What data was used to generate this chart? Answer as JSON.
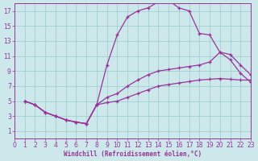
{
  "xlabel": "Windchill (Refroidissement éolien,°C)",
  "bg_color": "#cce8ea",
  "grid_color": "#99cccc",
  "line_color": "#993399",
  "axis_color": "#993399",
  "xlim": [
    0,
    23
  ],
  "ylim": [
    0,
    18
  ],
  "xticks": [
    0,
    1,
    2,
    3,
    4,
    5,
    6,
    7,
    8,
    9,
    10,
    11,
    12,
    13,
    14,
    15,
    16,
    17,
    18,
    19,
    20,
    21,
    22,
    23
  ],
  "yticks": [
    1,
    3,
    5,
    7,
    9,
    11,
    13,
    15,
    17
  ],
  "curve1_x": [
    1,
    2,
    3,
    4,
    5,
    6,
    7,
    8,
    9,
    10,
    11,
    12,
    13,
    14,
    15,
    16,
    17,
    18,
    19,
    20,
    21,
    22,
    23
  ],
  "curve1_y": [
    5,
    4.5,
    3.5,
    3.0,
    2.5,
    2.2,
    2.0,
    4.5,
    9.8,
    13.8,
    16.2,
    17.0,
    17.4,
    18.2,
    18.4,
    17.4,
    17.0,
    14.0,
    13.8,
    11.5,
    10.5,
    8.7,
    7.5
  ],
  "curve2_x": [
    1,
    2,
    3,
    4,
    5,
    6,
    7,
    8,
    9,
    10,
    11,
    12,
    13,
    14,
    15,
    16,
    17,
    18,
    19,
    20,
    21,
    22,
    23
  ],
  "curve2_y": [
    5,
    4.5,
    3.5,
    3.0,
    2.5,
    2.2,
    2.0,
    4.5,
    5.5,
    6.0,
    7.0,
    7.8,
    8.5,
    9.0,
    9.2,
    9.4,
    9.6,
    9.8,
    10.2,
    11.5,
    11.2,
    9.8,
    8.5
  ],
  "curve3_x": [
    1,
    2,
    3,
    4,
    5,
    6,
    7,
    8,
    9,
    10,
    11,
    12,
    13,
    14,
    15,
    16,
    17,
    18,
    19,
    20,
    21,
    22,
    23
  ],
  "curve3_y": [
    5,
    4.5,
    3.5,
    3.0,
    2.5,
    2.2,
    2.0,
    4.5,
    4.8,
    5.0,
    5.5,
    6.0,
    6.5,
    7.0,
    7.2,
    7.4,
    7.6,
    7.8,
    7.9,
    8.0,
    7.9,
    7.8,
    7.8
  ],
  "tick_fontsize": 5.5,
  "label_fontsize": 5.5
}
